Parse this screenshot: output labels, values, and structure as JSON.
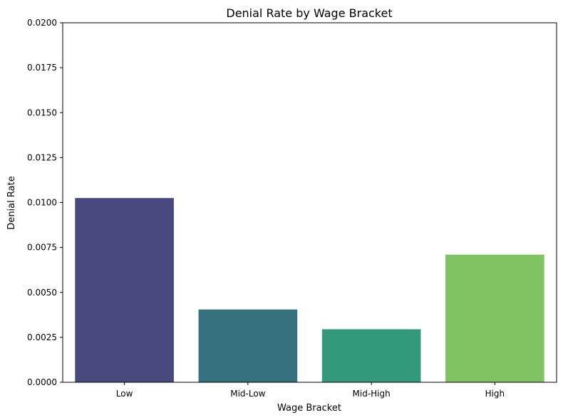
{
  "chart_data": {
    "type": "bar",
    "title": "Denial Rate by Wage Bracket",
    "xlabel": "Wage Bracket",
    "ylabel": "Denial Rate",
    "categories": [
      "Low",
      "Mid-Low",
      "Mid-High",
      "High"
    ],
    "values": [
      0.01025,
      0.00405,
      0.00295,
      0.0071
    ],
    "colors": [
      "#48497f",
      "#35717f",
      "#33997b",
      "#7fc363"
    ],
    "ylim": [
      0,
      0.02
    ],
    "yticks": [
      "0.0000",
      "0.0025",
      "0.0050",
      "0.0075",
      "0.0100",
      "0.0125",
      "0.0150",
      "0.0175",
      "0.0200"
    ],
    "grid": false,
    "legend": "none"
  }
}
